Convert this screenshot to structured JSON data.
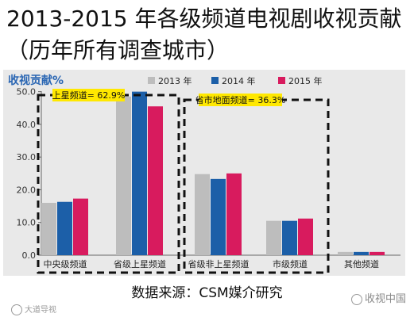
{
  "page": {
    "title": "2013-2015 年各级频道电视剧收视贡献（历年所有调查城市）",
    "source": "数据来源：CSM媒介研究",
    "watermark_left": "大道导视",
    "watermark_right": "收视中国"
  },
  "chart_data": {
    "type": "bar",
    "title": "收视贡献%",
    "categories": [
      "中央级频道",
      "省级上星频道",
      "省级非上星频道",
      "市级频道",
      "其他频道"
    ],
    "series": [
      {
        "name": "2013 年",
        "values": [
          16.0,
          48.5,
          24.8,
          10.5,
          1.0
        ]
      },
      {
        "name": "2014 年",
        "values": [
          16.3,
          50.0,
          23.3,
          10.5,
          1.0
        ]
      },
      {
        "name": "2015 年",
        "values": [
          17.3,
          45.5,
          25.0,
          11.2,
          1.0
        ]
      }
    ],
    "ylim": [
      0,
      55
    ],
    "yticks": [
      "0.0",
      "10.0",
      "20.0",
      "30.0",
      "40.0",
      "50.0"
    ],
    "annotations": [
      {
        "text": "上星频道= 62.9%",
        "covers": [
          "中央级频道",
          "省级上星频道"
        ]
      },
      {
        "text": "省市地面频道= 36.3%",
        "covers": [
          "省级非上星频道",
          "市级频道"
        ]
      }
    ],
    "colors": {
      "2013 年": "#bdbdbd",
      "2014 年": "#1c5fa8",
      "2015 年": "#d81b5e",
      "title": "#2a66b3",
      "annotation_bg": "#ffe800"
    },
    "legend_position": "top",
    "grid": false
  }
}
